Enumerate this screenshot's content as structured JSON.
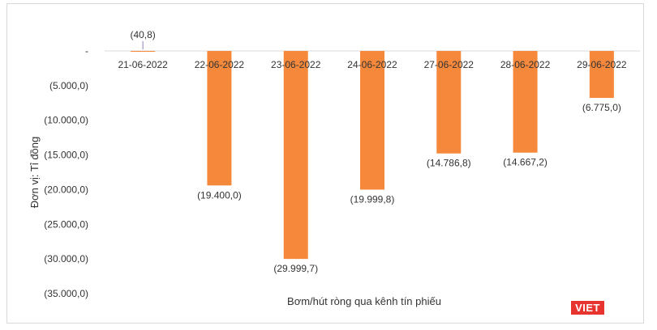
{
  "chart_data": {
    "type": "bar",
    "title": "",
    "xlabel": "Bơm/hút ròng qua kênh tín phiếu",
    "ylabel": "Đơn vị: Tỉ đồng",
    "categories": [
      "21-06-2022",
      "22-06-2022",
      "23-06-2022",
      "24-06-2022",
      "27-06-2022",
      "28-06-2022",
      "29-06-2022"
    ],
    "values": [
      -40.8,
      -19400.0,
      -29999.7,
      -19999.8,
      -14786.8,
      -14667.2,
      -6775.0
    ],
    "data_labels": [
      "(40,8)",
      "(19.400,0)",
      "(29.999,7)",
      "(19.999,8)",
      "(14.786,8)",
      "(14.667,2)",
      "(6.775,0)"
    ],
    "ylim": [
      -35000,
      0
    ],
    "yticks": [
      0,
      -5000,
      -10000,
      -15000,
      -20000,
      -25000,
      -30000,
      -35000
    ],
    "ytick_labels": [
      "-",
      "(5.000,0)",
      "(10.000,0)",
      "(15.000,0)",
      "(20.000,0)",
      "(25.000,0)",
      "(30.000,0)",
      "(35.000,0)"
    ],
    "bar_color": "#f5883a",
    "grid": false,
    "legend": "none"
  },
  "logo": {
    "text": "VIET",
    "color": "#e8342e"
  }
}
